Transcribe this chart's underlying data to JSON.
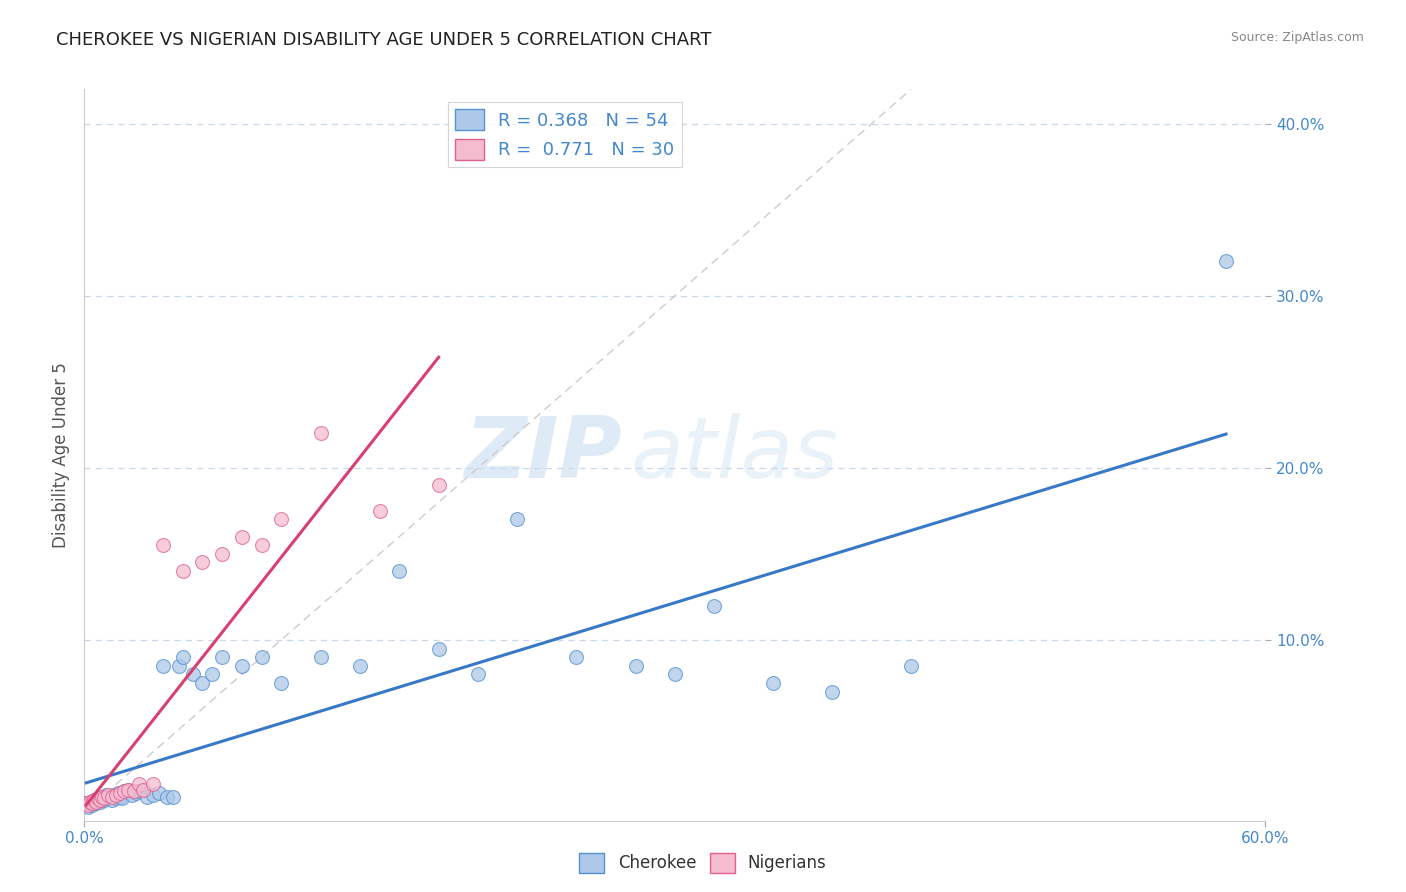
{
  "title": "CHEROKEE VS NIGERIAN DISABILITY AGE UNDER 5 CORRELATION CHART",
  "source": "Source: ZipAtlas.com",
  "ylabel": "Disability Age Under 5",
  "xlim": [
    0.0,
    0.6
  ],
  "ylim": [
    -0.005,
    0.42
  ],
  "background_color": "#ffffff",
  "watermark_zip": "ZIP",
  "watermark_atlas": "atlas",
  "legend1_label": "R = 0.368   N = 54",
  "legend2_label": "R =  0.771   N = 30",
  "cherokee_color": "#adc8e8",
  "nigerian_color": "#f5bcd0",
  "cherokee_edge_color": "#5590d0",
  "nigerian_edge_color": "#e06090",
  "cherokee_line_color": "#3878c8",
  "nigerian_line_color": "#d84070",
  "title_color": "#222222",
  "axis_color": "#4488cc",
  "ylabel_color": "#555555",
  "grid_color": "#c8d8ea",
  "diag_color": "#cccccc",
  "cherokee_points_x": [
    0.001,
    0.002,
    0.003,
    0.004,
    0.005,
    0.006,
    0.007,
    0.008,
    0.009,
    0.01,
    0.011,
    0.012,
    0.013,
    0.014,
    0.015,
    0.016,
    0.017,
    0.018,
    0.019,
    0.02,
    0.022,
    0.024,
    0.026,
    0.028,
    0.03,
    0.032,
    0.035,
    0.038,
    0.04,
    0.042,
    0.045,
    0.048,
    0.05,
    0.055,
    0.06,
    0.065,
    0.07,
    0.08,
    0.09,
    0.1,
    0.12,
    0.14,
    0.16,
    0.18,
    0.2,
    0.22,
    0.25,
    0.28,
    0.3,
    0.32,
    0.35,
    0.38,
    0.42,
    0.58
  ],
  "cherokee_points_y": [
    0.005,
    0.003,
    0.006,
    0.004,
    0.007,
    0.005,
    0.008,
    0.006,
    0.009,
    0.007,
    0.01,
    0.008,
    0.009,
    0.007,
    0.01,
    0.008,
    0.011,
    0.009,
    0.008,
    0.012,
    0.013,
    0.01,
    0.011,
    0.012,
    0.013,
    0.009,
    0.01,
    0.011,
    0.085,
    0.009,
    0.009,
    0.085,
    0.09,
    0.08,
    0.075,
    0.08,
    0.09,
    0.085,
    0.09,
    0.075,
    0.09,
    0.085,
    0.14,
    0.095,
    0.08,
    0.17,
    0.09,
    0.085,
    0.08,
    0.12,
    0.075,
    0.07,
    0.085,
    0.32
  ],
  "nigerian_points_x": [
    0.001,
    0.002,
    0.003,
    0.004,
    0.005,
    0.006,
    0.007,
    0.008,
    0.009,
    0.01,
    0.012,
    0.014,
    0.016,
    0.018,
    0.02,
    0.022,
    0.025,
    0.028,
    0.03,
    0.035,
    0.04,
    0.05,
    0.06,
    0.07,
    0.08,
    0.09,
    0.1,
    0.12,
    0.15,
    0.18
  ],
  "nigerian_points_y": [
    0.005,
    0.004,
    0.006,
    0.005,
    0.007,
    0.006,
    0.008,
    0.007,
    0.009,
    0.008,
    0.01,
    0.009,
    0.01,
    0.011,
    0.012,
    0.013,
    0.012,
    0.016,
    0.013,
    0.016,
    0.155,
    0.14,
    0.145,
    0.15,
    0.16,
    0.155,
    0.17,
    0.22,
    0.175,
    0.19
  ]
}
